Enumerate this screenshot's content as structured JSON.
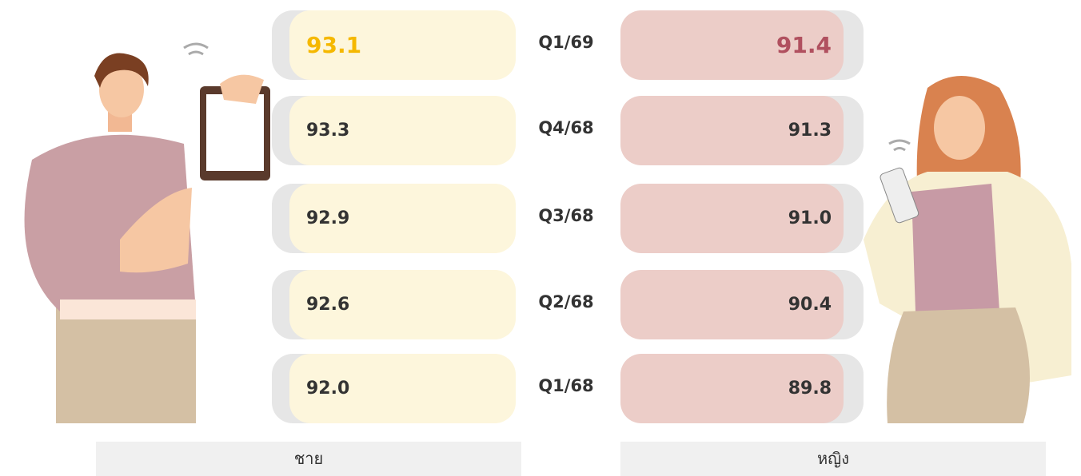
{
  "rows": [
    {
      "quarter": "Q1/69",
      "male": "93.1",
      "female": "91.4"
    },
    {
      "quarter": "Q4/68",
      "male": "93.3",
      "female": "91.3"
    },
    {
      "quarter": "Q3/68",
      "male": "92.9",
      "female": "91.0"
    },
    {
      "quarter": "Q2/68",
      "male": "92.6",
      "female": "90.4"
    },
    {
      "quarter": "Q1/68",
      "male": "92.0",
      "female": "89.8"
    }
  ],
  "legend": {
    "male": "ชาย",
    "female": "หญิง"
  }
}
